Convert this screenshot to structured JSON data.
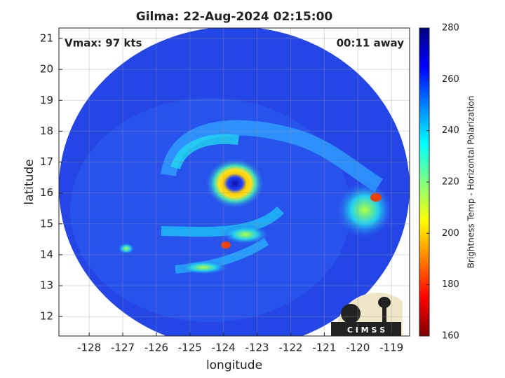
{
  "chart_data": {
    "type": "image",
    "title": "Gilma: 22-Aug-2024 02:15:00",
    "xlabel": "longitude",
    "ylabel": "latitude",
    "annotations": [
      "Vmax: 97 kts",
      "00:11 away"
    ],
    "xlim": [
      -128.9,
      -118.46
    ],
    "xticks": [
      -128,
      -127,
      -126,
      -125,
      -124,
      -123,
      -122,
      -121,
      -120,
      -119
    ],
    "ylim": [
      11.37,
      21.34
    ],
    "yticks": [
      12,
      13,
      14,
      15,
      16,
      17,
      18,
      19,
      20,
      21
    ],
    "grid": true,
    "colorbar": {
      "label": "Brightness Temp - Horizontal Polarization",
      "lim": [
        160,
        280
      ],
      "ticks": [
        160,
        180,
        200,
        220,
        240,
        260,
        280
      ],
      "colormap": "jet"
    },
    "logo": "C I M S S"
  }
}
